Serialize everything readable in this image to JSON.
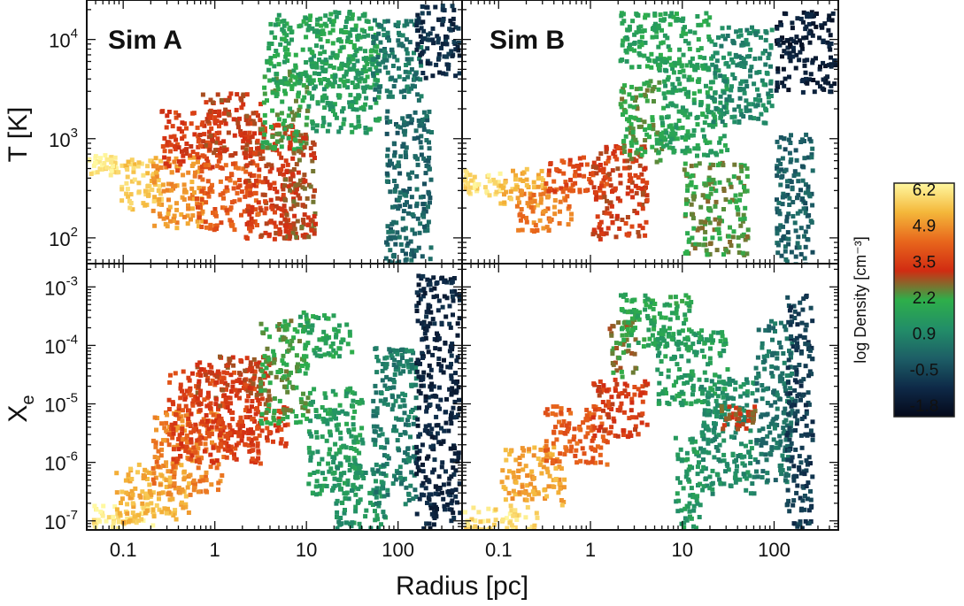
{
  "chart_data": {
    "type": "scatter",
    "title": "",
    "xlabel": "Radius [pc]",
    "xscale": "log",
    "xlim": [
      0.04,
      500
    ],
    "xticks": [
      {
        "value": 0.1,
        "label": "0.1"
      },
      {
        "value": 1,
        "label": "1"
      },
      {
        "value": 10,
        "label": "10"
      },
      {
        "value": 100,
        "label": "100"
      }
    ],
    "rows": [
      {
        "ylabel": "T [K]",
        "yscale": "log",
        "ylim": [
          55,
          25000
        ],
        "yticks": [
          {
            "value": 100,
            "base": "10",
            "exp": "2"
          },
          {
            "value": 1000,
            "base": "10",
            "exp": "3"
          },
          {
            "value": 10000,
            "base": "10",
            "exp": "4"
          }
        ]
      },
      {
        "ylabel": "X",
        "ylabel_sub": "e",
        "yscale": "log",
        "ylim": [
          7e-08,
          0.0025
        ],
        "yticks": [
          {
            "value": 1e-07,
            "base": "10",
            "exp": "-7"
          },
          {
            "value": 1e-06,
            "base": "10",
            "exp": "-6"
          },
          {
            "value": 1e-05,
            "base": "10",
            "exp": "-5"
          },
          {
            "value": 0.0001,
            "base": "10",
            "exp": "-4"
          },
          {
            "value": 0.001,
            "base": "10",
            "exp": "-3"
          }
        ]
      }
    ],
    "columns": [
      {
        "label": "Sim A"
      },
      {
        "label": "Sim B"
      }
    ],
    "colorbar": {
      "title": "log Density [cm⁻³]",
      "ticks": [
        "6.2",
        "4.9",
        "3.5",
        "2.2",
        "0.9",
        "-0.5",
        "-1.8"
      ],
      "range": [
        -1.8,
        6.2
      ],
      "colors": [
        "#05091a",
        "#0e2a48",
        "#1d5e66",
        "#228e68",
        "#2eaf4a",
        "#d12c12",
        "#e8661c",
        "#f4b73a",
        "#fff8a0"
      ]
    },
    "series": [
      {
        "panel": "Sim A — T [K]",
        "clouds": [
          {
            "r0": 0.04,
            "r1": 0.08,
            "y0": 450,
            "y1": 750,
            "d": 6.0
          },
          {
            "r0": 0.08,
            "r1": 0.25,
            "y0": 200,
            "y1": 650,
            "d": 5.5
          },
          {
            "r0": 0.2,
            "r1": 0.7,
            "y0": 130,
            "y1": 700,
            "d": 4.8
          },
          {
            "r0": 0.25,
            "r1": 1.2,
            "y0": 500,
            "y1": 2000,
            "d": 3.5
          },
          {
            "r0": 0.6,
            "r1": 3,
            "y0": 120,
            "y1": 600,
            "d": 4.0
          },
          {
            "r0": 0.7,
            "r1": 3,
            "y0": 700,
            "y1": 3000,
            "d": 3.2
          },
          {
            "r0": 2,
            "r1": 8,
            "y0": 100,
            "y1": 1500,
            "d": 3.3
          },
          {
            "r0": 3,
            "r1": 10,
            "y0": 800,
            "y1": 5000,
            "d": 2.2
          },
          {
            "r0": 5,
            "r1": 12,
            "y0": 100,
            "y1": 1200,
            "d": 3.0
          },
          {
            "r0": 3.5,
            "r1": 60,
            "y0": 3500,
            "y1": 20000,
            "d": 1.8
          },
          {
            "r0": 10,
            "r1": 60,
            "y0": 1200,
            "y1": 7000,
            "d": 1.6
          },
          {
            "r0": 50,
            "r1": 170,
            "y0": 2500,
            "y1": 17000,
            "d": 0.7
          },
          {
            "r0": 70,
            "r1": 220,
            "y0": 55,
            "y1": 2000,
            "d": 0.3
          },
          {
            "r0": 150,
            "r1": 450,
            "y0": 4000,
            "y1": 24000,
            "d": -0.8
          }
        ]
      },
      {
        "panel": "Sim B — T [K]",
        "clouds": [
          {
            "r0": 0.04,
            "r1": 0.1,
            "y0": 280,
            "y1": 500,
            "d": 5.8
          },
          {
            "r0": 0.1,
            "r1": 0.3,
            "y0": 220,
            "y1": 520,
            "d": 5.2
          },
          {
            "r0": 0.15,
            "r1": 0.6,
            "y0": 120,
            "y1": 350,
            "d": 4.5
          },
          {
            "r0": 0.3,
            "r1": 1.5,
            "y0": 300,
            "y1": 700,
            "d": 3.7
          },
          {
            "r0": 1,
            "r1": 4,
            "y0": 100,
            "y1": 900,
            "d": 3.3
          },
          {
            "r0": 2,
            "r1": 6,
            "y0": 600,
            "y1": 4000,
            "d": 2.3
          },
          {
            "r0": 2,
            "r1": 20,
            "y0": 5000,
            "y1": 20000,
            "d": 1.8
          },
          {
            "r0": 5,
            "r1": 30,
            "y0": 700,
            "y1": 6000,
            "d": 1.7
          },
          {
            "r0": 20,
            "r1": 90,
            "y0": 1500,
            "y1": 14000,
            "d": 1.0
          },
          {
            "r0": 10,
            "r1": 50,
            "y0": 70,
            "y1": 600,
            "d": 2.4
          },
          {
            "r0": 100,
            "r1": 250,
            "y0": 55,
            "y1": 1200,
            "d": 0.2
          },
          {
            "r0": 100,
            "r1": 450,
            "y0": 3000,
            "y1": 20000,
            "d": -1.2
          }
        ]
      },
      {
        "panel": "Sim A — Xe",
        "clouds": [
          {
            "r0": 0.04,
            "r1": 0.2,
            "y0": 8e-08,
            "y1": 2e-07,
            "d": 6.0
          },
          {
            "r0": 0.08,
            "r1": 0.5,
            "y0": 1e-07,
            "y1": 1e-06,
            "d": 5.2
          },
          {
            "r0": 0.2,
            "r1": 1.2,
            "y0": 3e-07,
            "y1": 8e-06,
            "d": 4.5
          },
          {
            "r0": 0.3,
            "r1": 3,
            "y0": 1e-06,
            "y1": 4e-05,
            "d": 3.6
          },
          {
            "r0": 0.6,
            "r1": 4,
            "y0": 1e-05,
            "y1": 7e-05,
            "d": 3.2
          },
          {
            "r0": 1,
            "r1": 6,
            "y0": 2e-06,
            "y1": 1e-05,
            "d": 3.5
          },
          {
            "r0": 3,
            "r1": 10,
            "y0": 5e-06,
            "y1": 0.0003,
            "d": 2.3
          },
          {
            "r0": 8,
            "r1": 30,
            "y0": 7e-05,
            "y1": 0.0004,
            "d": 1.8
          },
          {
            "r0": 10,
            "r1": 40,
            "y0": 3e-07,
            "y1": 2e-05,
            "d": 1.6
          },
          {
            "r0": 20,
            "r1": 70,
            "y0": 8e-08,
            "y1": 1e-06,
            "d": 1.3
          },
          {
            "r0": 50,
            "r1": 150,
            "y0": 2e-07,
            "y1": 0.0001,
            "d": 0.8
          },
          {
            "r0": 150,
            "r1": 450,
            "y0": 8e-08,
            "y1": 0.002,
            "d": -1.0
          }
        ]
      },
      {
        "panel": "Sim B — Xe",
        "clouds": [
          {
            "r0": 0.04,
            "r1": 0.25,
            "y0": 7e-08,
            "y1": 2e-07,
            "d": 5.8
          },
          {
            "r0": 0.1,
            "r1": 0.5,
            "y0": 2e-07,
            "y1": 2e-06,
            "d": 5.0
          },
          {
            "r0": 0.3,
            "r1": 1.5,
            "y0": 1e-06,
            "y1": 1e-05,
            "d": 4.0
          },
          {
            "r0": 1,
            "r1": 4,
            "y0": 3e-06,
            "y1": 3e-05,
            "d": 3.4
          },
          {
            "r0": 1.5,
            "r1": 3,
            "y0": 3e-05,
            "y1": 0.0003,
            "d": 2.6
          },
          {
            "r0": 2,
            "r1": 12,
            "y0": 0.0001,
            "y1": 0.0008,
            "d": 1.9
          },
          {
            "r0": 5,
            "r1": 30,
            "y0": 1e-05,
            "y1": 0.0002,
            "d": 1.6
          },
          {
            "r0": 8,
            "r1": 15,
            "y0": 8e-08,
            "y1": 3e-06,
            "d": 1.5
          },
          {
            "r0": 15,
            "r1": 60,
            "y0": 3e-07,
            "y1": 3e-05,
            "d": 1.2
          },
          {
            "r0": 25,
            "r1": 60,
            "y0": 4e-06,
            "y1": 1e-05,
            "d": 3.0
          },
          {
            "r0": 60,
            "r1": 150,
            "y0": 5e-07,
            "y1": 0.0003,
            "d": 0.6
          },
          {
            "r0": 130,
            "r1": 250,
            "y0": 8e-08,
            "y1": 0.0008,
            "d": -0.5
          }
        ]
      }
    ]
  }
}
